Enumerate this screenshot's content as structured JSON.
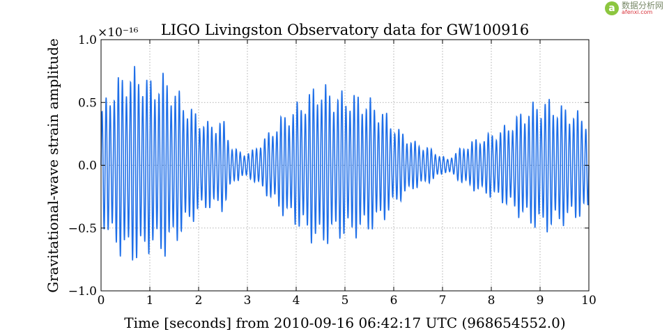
{
  "watermark": {
    "logo_glyph": "a",
    "text_cn": "数据分析网",
    "text_en": "afenxi.com"
  },
  "chart_data": {
    "type": "line",
    "title": "LIGO Livingston Observatory data for GW100916",
    "xlabel": "Time [seconds] from 2010-09-16 06:42:17 UTC (968654552.0)",
    "ylabel": "Gravitational-wave strain amplitude",
    "y_multiplier_label": "×10⁻¹⁶",
    "xlim": [
      0,
      10
    ],
    "ylim": [
      -1.0,
      1.0
    ],
    "x_ticks": [
      0,
      1,
      2,
      3,
      4,
      5,
      6,
      7,
      8,
      9,
      10
    ],
    "x_tick_labels": [
      "0",
      "1",
      "2",
      "3",
      "4",
      "5",
      "6",
      "7",
      "8",
      "9",
      "10"
    ],
    "y_ticks": [
      -1.0,
      -0.5,
      0.0,
      0.5,
      1.0
    ],
    "y_tick_labels": [
      "−1.0",
      "−0.5",
      "0.0",
      "0.5",
      "1.0"
    ],
    "grid": true,
    "line_color": "#1f6fe8",
    "series": [
      {
        "envelope_time": [
          0,
          0.2,
          0.5,
          0.8,
          1.0,
          1.3,
          1.6,
          1.9,
          2.2,
          2.5,
          2.7,
          2.9,
          3.1,
          3.4,
          3.7,
          4.0,
          4.3,
          4.5,
          4.8,
          5.1,
          5.5,
          5.8,
          6.1,
          6.4,
          6.7,
          6.9,
          7.1,
          7.3,
          7.6,
          7.9,
          8.2,
          8.5,
          8.8,
          9.1,
          9.4,
          9.7,
          10.0
        ],
        "envelope_amplitude": [
          0.45,
          0.65,
          0.78,
          0.8,
          0.7,
          0.75,
          0.6,
          0.45,
          0.35,
          0.38,
          0.15,
          0.1,
          0.12,
          0.25,
          0.4,
          0.5,
          0.62,
          0.68,
          0.6,
          0.6,
          0.55,
          0.45,
          0.3,
          0.2,
          0.15,
          0.1,
          0.05,
          0.12,
          0.2,
          0.25,
          0.3,
          0.4,
          0.5,
          0.55,
          0.5,
          0.45,
          0.4
        ],
        "oscillation_cycles_per_second": 12
      }
    ]
  }
}
